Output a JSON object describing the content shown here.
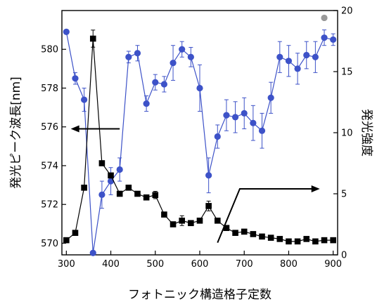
{
  "chart_data": {
    "type": "scatter",
    "xlabel": "フォトニック構造格子定数",
    "ylabel_left": "発光ピーク波長[nm]",
    "ylabel_right": "発光強度",
    "xlim": [
      290,
      910
    ],
    "ylim_left": [
      569.4,
      582.0
    ],
    "ylim_right": [
      0,
      20
    ],
    "x_ticks": [
      300,
      400,
      500,
      600,
      700,
      800,
      900
    ],
    "y_left_ticks": [
      570,
      572,
      574,
      576,
      578,
      580
    ],
    "y_right_ticks": [
      0,
      5,
      10,
      15,
      20
    ],
    "grid": false,
    "legend": "none",
    "colors": {
      "wavelength": "#3d52c8",
      "intensity": "#000000",
      "gray_marker": "#999999"
    },
    "series": [
      {
        "axis": "left",
        "marker": "circle",
        "color": "#3d52c8",
        "points": [
          {
            "x": 300,
            "y": 580.9,
            "err": 0
          },
          {
            "x": 320,
            "y": 578.5,
            "err": 0.3
          },
          {
            "x": 340,
            "y": 577.4,
            "err": 0.6
          },
          {
            "x": 360,
            "y": 569.5,
            "err": 0
          },
          {
            "x": 380,
            "y": 572.5,
            "err": 0.7
          },
          {
            "x": 400,
            "y": 573.2,
            "err": 0.7
          },
          {
            "x": 420,
            "y": 573.8,
            "err": 0.6
          },
          {
            "x": 440,
            "y": 579.6,
            "err": 0.3
          },
          {
            "x": 460,
            "y": 579.8,
            "err": 0.4
          },
          {
            "x": 480,
            "y": 577.2,
            "err": 0.4
          },
          {
            "x": 500,
            "y": 578.3,
            "err": 0.4
          },
          {
            "x": 520,
            "y": 578.2,
            "err": 0.4
          },
          {
            "x": 540,
            "y": 579.3,
            "err": 0.9
          },
          {
            "x": 560,
            "y": 580.0,
            "err": 0.4
          },
          {
            "x": 580,
            "y": 579.6,
            "err": 0.5
          },
          {
            "x": 600,
            "y": 578.0,
            "err": 1.2
          },
          {
            "x": 620,
            "y": 573.5,
            "err": 0.9
          },
          {
            "x": 640,
            "y": 575.5,
            "err": 0.6
          },
          {
            "x": 660,
            "y": 576.6,
            "err": 0.8
          },
          {
            "x": 680,
            "y": 576.5,
            "err": 0.8
          },
          {
            "x": 700,
            "y": 576.7,
            "err": 0.8
          },
          {
            "x": 720,
            "y": 576.2,
            "err": 0.9
          },
          {
            "x": 740,
            "y": 575.8,
            "err": 0.9
          },
          {
            "x": 760,
            "y": 577.5,
            "err": 0.8
          },
          {
            "x": 780,
            "y": 579.6,
            "err": 0.8
          },
          {
            "x": 800,
            "y": 579.4,
            "err": 0.8
          },
          {
            "x": 820,
            "y": 579.0,
            "err": 0.8
          },
          {
            "x": 840,
            "y": 579.7,
            "err": 0.7
          },
          {
            "x": 860,
            "y": 579.6,
            "err": 0.8
          },
          {
            "x": 880,
            "y": 580.6,
            "err": 0.4
          },
          {
            "x": 900,
            "y": 580.5,
            "err": 0.3
          }
        ]
      },
      {
        "axis": "right",
        "marker": "square",
        "color": "#000000",
        "points": [
          {
            "x": 300,
            "y": 1.2,
            "err": 0
          },
          {
            "x": 320,
            "y": 1.8,
            "err": 0
          },
          {
            "x": 340,
            "y": 5.5,
            "err": 0
          },
          {
            "x": 360,
            "y": 17.7,
            "err": 0.7
          },
          {
            "x": 380,
            "y": 7.5,
            "err": 0
          },
          {
            "x": 400,
            "y": 6.5,
            "err": 0
          },
          {
            "x": 420,
            "y": 5.0,
            "err": 0
          },
          {
            "x": 440,
            "y": 5.5,
            "err": 0
          },
          {
            "x": 460,
            "y": 5.0,
            "err": 0
          },
          {
            "x": 480,
            "y": 4.7,
            "err": 0
          },
          {
            "x": 500,
            "y": 4.9,
            "err": 0.3
          },
          {
            "x": 520,
            "y": 3.3,
            "err": 0
          },
          {
            "x": 540,
            "y": 2.5,
            "err": 0
          },
          {
            "x": 560,
            "y": 2.8,
            "err": 0.4
          },
          {
            "x": 580,
            "y": 2.6,
            "err": 0
          },
          {
            "x": 600,
            "y": 2.8,
            "err": 0
          },
          {
            "x": 620,
            "y": 4.0,
            "err": 0.4
          },
          {
            "x": 640,
            "y": 2.8,
            "err": 0
          },
          {
            "x": 660,
            "y": 2.2,
            "err": 0
          },
          {
            "x": 680,
            "y": 1.8,
            "err": 0
          },
          {
            "x": 700,
            "y": 1.9,
            "err": 0
          },
          {
            "x": 720,
            "y": 1.7,
            "err": 0
          },
          {
            "x": 740,
            "y": 1.5,
            "err": 0
          },
          {
            "x": 760,
            "y": 1.4,
            "err": 0
          },
          {
            "x": 780,
            "y": 1.3,
            "err": 0
          },
          {
            "x": 800,
            "y": 1.1,
            "err": 0
          },
          {
            "x": 820,
            "y": 1.1,
            "err": 0
          },
          {
            "x": 840,
            "y": 1.3,
            "err": 0
          },
          {
            "x": 860,
            "y": 1.1,
            "err": 0
          },
          {
            "x": 880,
            "y": 1.2,
            "err": 0
          },
          {
            "x": 900,
            "y": 1.2,
            "err": 0
          }
        ]
      }
    ],
    "extra_markers": [
      {
        "x": 880,
        "y_right": 19.4,
        "marker": "circle",
        "color": "#999999"
      }
    ],
    "annotations": [
      {
        "type": "arrow",
        "direction": "left",
        "points_to_axis": "left",
        "tail_x": 420,
        "tail_y_left": 575.9,
        "head_x": 310,
        "head_y_left": 575.9
      },
      {
        "type": "arrow",
        "direction": "right",
        "points_to_axis": "right",
        "tail_x": 640,
        "tail_y_right": 1.0,
        "bend_x": 690,
        "bend_y_right": 5.4,
        "head_x": 870,
        "head_y_right": 5.4
      }
    ]
  }
}
